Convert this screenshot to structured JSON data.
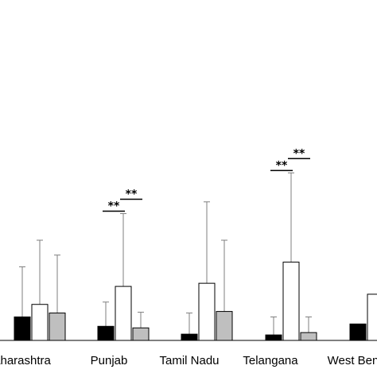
{
  "chart_data": {
    "type": "bar",
    "title": "",
    "xlabel": "",
    "ylabel": "",
    "categories": [
      "Maharashtra",
      "Punjab",
      "Tamil Nadu",
      "Telangana",
      "West Bengal"
    ],
    "category_labels": [
      "aharashtra",
      "Punjab",
      "Tamil Nadu",
      "Telangana",
      "West Ben"
    ],
    "series": [
      {
        "color": "#000000",
        "values": [
          30,
          18,
          8,
          7,
          21
        ],
        "errors": [
          64,
          31,
          27,
          23,
          null
        ]
      },
      {
        "color": "#ffffff",
        "values": [
          46,
          69,
          73,
          100,
          59
        ],
        "errors": [
          82,
          93,
          104,
          114,
          null
        ]
      },
      {
        "color": "#bfbfbf",
        "values": [
          35,
          16,
          37,
          10,
          null
        ],
        "errors": [
          74,
          20,
          91,
          20,
          null
        ]
      }
    ],
    "ylim": [
      0,
      254
    ],
    "grid": false,
    "legend": "none",
    "significance": [
      {
        "category": "Punjab",
        "label": "**"
      },
      {
        "category": "Punjab",
        "label": "**"
      },
      {
        "category": "Telangana",
        "label": "**"
      },
      {
        "category": "Telangana",
        "label": "**"
      }
    ]
  }
}
